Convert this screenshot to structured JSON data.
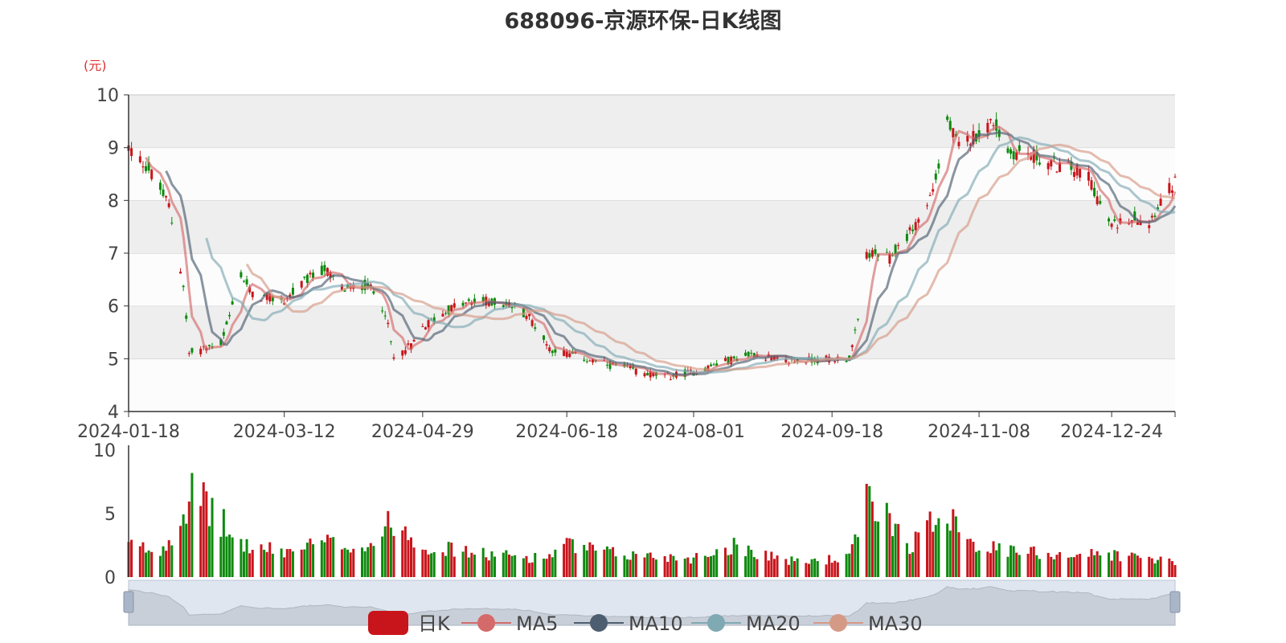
{
  "title": "688096-京源环保-日K线图",
  "colors": {
    "up": "#c8151b",
    "down": "#0e8a0e",
    "ma5": "#d46a6a",
    "ma10": "#4d5e70",
    "ma20": "#7fa9b3",
    "ma30": "#d59a86",
    "band_dark": "#eeeeee",
    "band_light": "#fcfcfc"
  },
  "chart_data": {
    "type": "candlestick",
    "title": "688096-京源环保-日K线图",
    "y_unit": "(元)",
    "ylim": [
      4,
      10
    ],
    "y_ticks": [
      "10",
      "9",
      "8",
      "7",
      "6",
      "5",
      "4"
    ],
    "x_range": [
      "2024-01-18",
      "2025-01-15"
    ],
    "x_ticks": [
      "2024-01-18",
      "2024-03-12",
      "2024-04-29",
      "2024-06-18",
      "2024-08-01",
      "2024-09-18",
      "2024-11-08",
      "2024-12-24"
    ],
    "volume_ylim": [
      0,
      10
    ],
    "volume_ticks": [
      "10",
      "5",
      "0"
    ],
    "legend": [
      "日K",
      "MA5",
      "MA10",
      "MA20",
      "MA30"
    ],
    "legend_position": "bottom",
    "close_anchors": [
      [
        "2024-01-18",
        9.0
      ],
      [
        "2024-01-25",
        8.6
      ],
      [
        "2024-02-01",
        7.9
      ],
      [
        "2024-02-06",
        6.4
      ],
      [
        "2024-02-08",
        5.1
      ],
      [
        "2024-02-19",
        5.3
      ],
      [
        "2024-02-22",
        5.8
      ],
      [
        "2024-02-26",
        6.6
      ],
      [
        "2024-03-01",
        6.2
      ],
      [
        "2024-03-12",
        6.1
      ],
      [
        "2024-03-20",
        6.5
      ],
      [
        "2024-03-26",
        6.7
      ],
      [
        "2024-04-02",
        6.3
      ],
      [
        "2024-04-10",
        6.4
      ],
      [
        "2024-04-16",
        5.9
      ],
      [
        "2024-04-19",
        5.0
      ],
      [
        "2024-04-26",
        5.3
      ],
      [
        "2024-04-29",
        5.6
      ],
      [
        "2024-05-10",
        6.0
      ],
      [
        "2024-05-20",
        6.1
      ],
      [
        "2024-05-30",
        6.0
      ],
      [
        "2024-06-05",
        5.8
      ],
      [
        "2024-06-12",
        5.2
      ],
      [
        "2024-06-18",
        5.1
      ],
      [
        "2024-07-01",
        4.9
      ],
      [
        "2024-07-10",
        4.8
      ],
      [
        "2024-07-22",
        4.65
      ],
      [
        "2024-08-01",
        4.75
      ],
      [
        "2024-08-12",
        4.95
      ],
      [
        "2024-08-22",
        5.1
      ],
      [
        "2024-09-02",
        4.95
      ],
      [
        "2024-09-18",
        5.0
      ],
      [
        "2024-09-24",
        5.0
      ],
      [
        "2024-09-27",
        5.7
      ],
      [
        "2024-09-30",
        7.0
      ],
      [
        "2024-10-08",
        6.9
      ],
      [
        "2024-10-15",
        7.4
      ],
      [
        "2024-10-21",
        7.9
      ],
      [
        "2024-10-25",
        8.6
      ],
      [
        "2024-10-28",
        9.5
      ],
      [
        "2024-11-01",
        9.0
      ],
      [
        "2024-11-08",
        9.3
      ],
      [
        "2024-11-13",
        9.5
      ],
      [
        "2024-11-18",
        8.9
      ],
      [
        "2024-11-25",
        8.9
      ],
      [
        "2024-12-02",
        8.7
      ],
      [
        "2024-12-10",
        8.6
      ],
      [
        "2024-12-16",
        8.5
      ],
      [
        "2024-12-20",
        7.9
      ],
      [
        "2024-12-24",
        7.5
      ],
      [
        "2024-12-31",
        7.7
      ],
      [
        "2025-01-06",
        7.6
      ],
      [
        "2025-01-10",
        8.0
      ],
      [
        "2025-01-15",
        8.35
      ]
    ],
    "volume_anchors": [
      [
        "2024-01-18",
        2.5
      ],
      [
        "2024-01-29",
        2.0
      ],
      [
        "2024-02-02",
        3.5
      ],
      [
        "2024-02-06",
        5.0
      ],
      [
        "2024-02-08",
        6.8
      ],
      [
        "2024-02-19",
        4.5
      ],
      [
        "2024-02-23",
        3.0
      ],
      [
        "2024-03-01",
        2.3
      ],
      [
        "2024-03-12",
        2.0
      ],
      [
        "2024-03-26",
        2.7
      ],
      [
        "2024-04-10",
        2.4
      ],
      [
        "2024-04-19",
        4.5
      ],
      [
        "2024-04-29",
        2.5
      ],
      [
        "2024-05-20",
        1.8
      ],
      [
        "2024-06-10",
        1.5
      ],
      [
        "2024-06-18",
        2.5
      ],
      [
        "2024-07-05",
        1.8
      ],
      [
        "2024-08-01",
        1.5
      ],
      [
        "2024-08-15",
        2.5
      ],
      [
        "2024-09-05",
        1.2
      ],
      [
        "2024-09-24",
        1.5
      ],
      [
        "2024-09-30",
        5.8
      ],
      [
        "2024-10-08",
        4.8
      ],
      [
        "2024-10-15",
        2.5
      ],
      [
        "2024-10-28",
        5.5
      ],
      [
        "2024-11-08",
        2.4
      ],
      [
        "2024-11-20",
        2.0
      ],
      [
        "2024-12-10",
        1.8
      ],
      [
        "2024-12-24",
        1.8
      ],
      [
        "2025-01-15",
        1.2
      ]
    ]
  },
  "legend_items": [
    {
      "label": "日K",
      "icon": "candle-swatch",
      "color": "#c8151b"
    },
    {
      "label": "MA5",
      "icon": "ma5-swatch",
      "color": "#d46a6a"
    },
    {
      "label": "MA10",
      "icon": "ma10-swatch",
      "color": "#4d5e70"
    },
    {
      "label": "MA20",
      "icon": "ma20-swatch",
      "color": "#7fa9b3"
    },
    {
      "label": "MA30",
      "icon": "ma30-swatch",
      "color": "#d59a86"
    }
  ]
}
